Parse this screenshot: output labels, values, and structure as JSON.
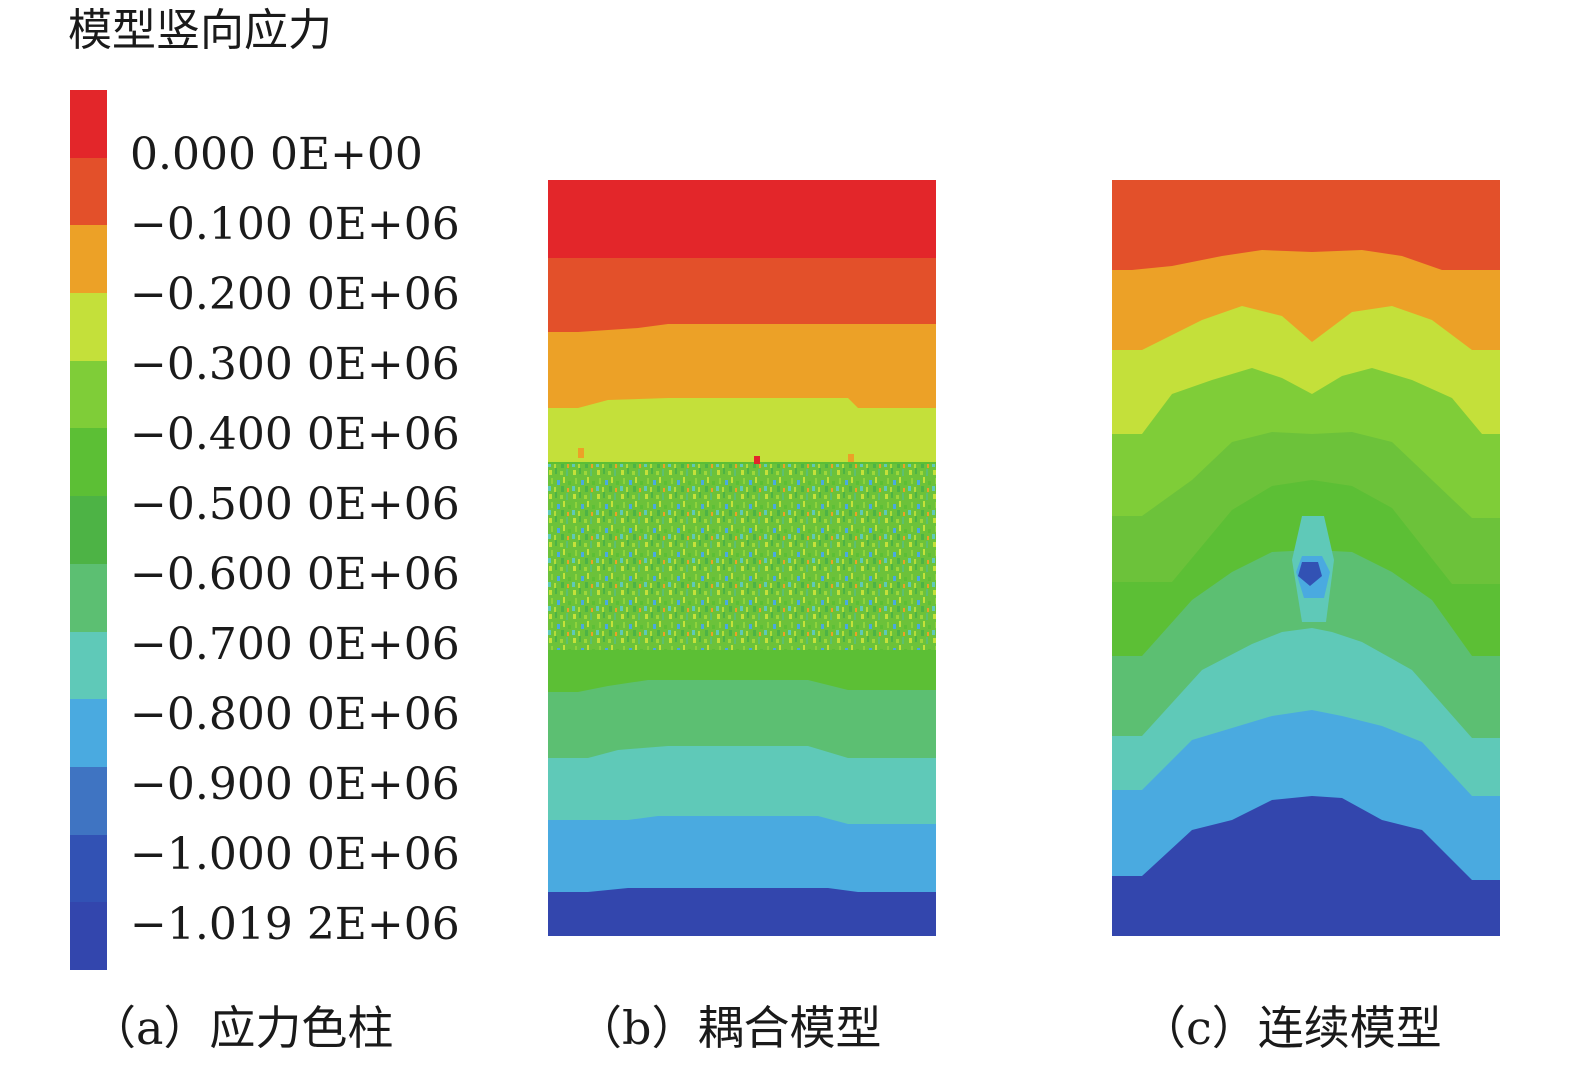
{
  "figure": {
    "title": "模型竖向应力"
  },
  "legend": {
    "colors": [
      "#e3262a",
      "#e3502a",
      "#eca127",
      "#c4e03a",
      "#7fcd38",
      "#5cbf35",
      "#4db345",
      "#5cbf72",
      "#5fc9b8",
      "#4aaae0",
      "#3f74c2",
      "#3252b4",
      "#3346ad"
    ],
    "labels": [
      "0.000 0E+00",
      "−0.100 0E+06",
      "−0.200 0E+06",
      "−0.300 0E+06",
      "−0.400 0E+06",
      "−0.500 0E+06",
      "−0.600 0E+06",
      "−0.700 0E+06",
      "−0.800 0E+06",
      "−0.900 0E+06",
      "−1.000 0E+06",
      "−1.019 2E+06"
    ]
  },
  "panels": [
    {
      "caption": "（a）应力色柱"
    },
    {
      "caption": "（b）耦合模型"
    },
    {
      "caption": "（c）连续模型"
    }
  ]
}
